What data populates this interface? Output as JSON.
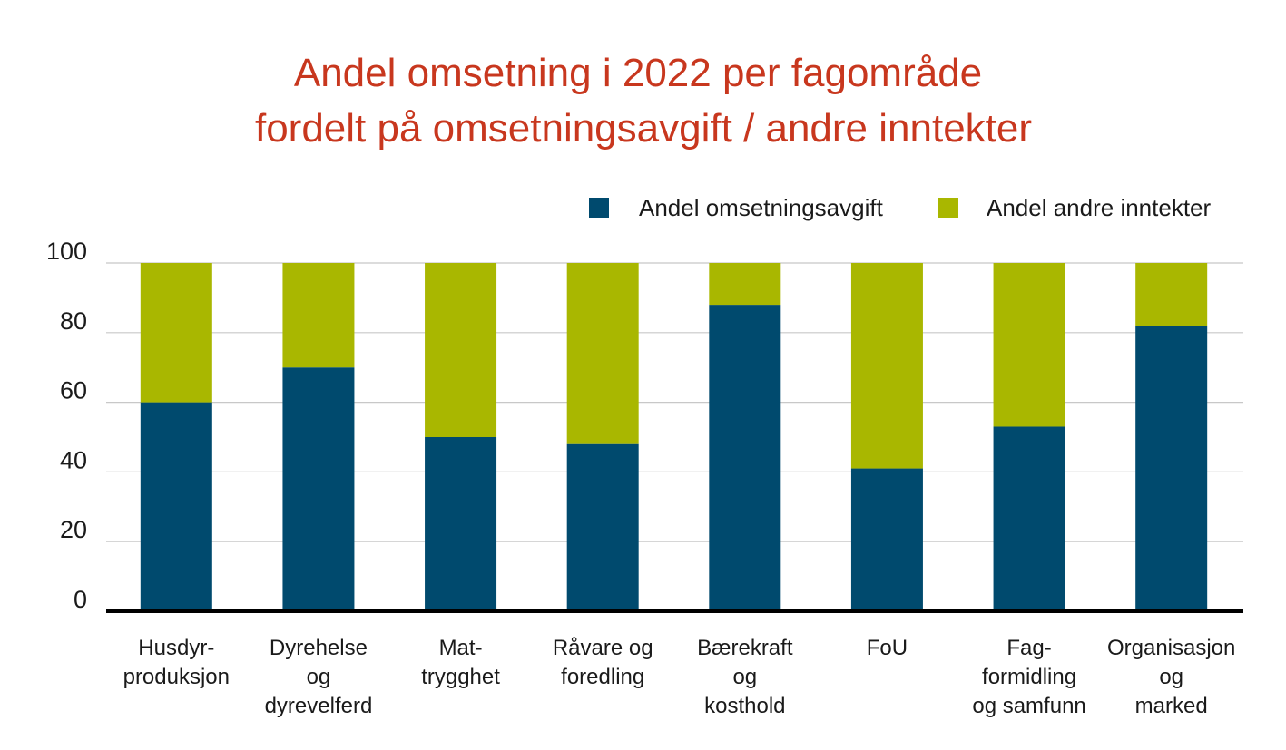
{
  "colors": {
    "series1": "#004a6e",
    "series2": "#a9b700",
    "title": "#c8371e",
    "grid": "#c8c8c8",
    "axis": "#000000"
  },
  "chart_data": {
    "type": "bar",
    "stacked": true,
    "title": [
      "Andel omsetning i 2022 per fagområde",
      "fordelt på omsetningsavgift / andre inntekter"
    ],
    "xlabel": "",
    "ylabel": "",
    "ylim": [
      0,
      100
    ],
    "yticks": [
      0,
      20,
      40,
      60,
      80,
      100
    ],
    "grid": true,
    "legend_position": "top-right",
    "categories": [
      [
        "Husdyr-",
        "produksjon"
      ],
      [
        "Dyrehelse",
        "og",
        "dyrevelferd"
      ],
      [
        "Mat-",
        "trygghet"
      ],
      [
        "Råvare og",
        "foredling"
      ],
      [
        "Bærekraft",
        "og",
        "kosthold"
      ],
      [
        "FoU"
      ],
      [
        "Fag-",
        "formidling",
        "og samfunn"
      ],
      [
        "Organisasjon",
        "og",
        "marked"
      ]
    ],
    "series": [
      {
        "name": "Andel omsetningsavgift",
        "values": [
          60,
          70,
          50,
          48,
          88,
          41,
          53,
          82
        ]
      },
      {
        "name": "Andel andre inntekter",
        "values": [
          40,
          30,
          50,
          52,
          12,
          59,
          47,
          18
        ]
      }
    ]
  }
}
